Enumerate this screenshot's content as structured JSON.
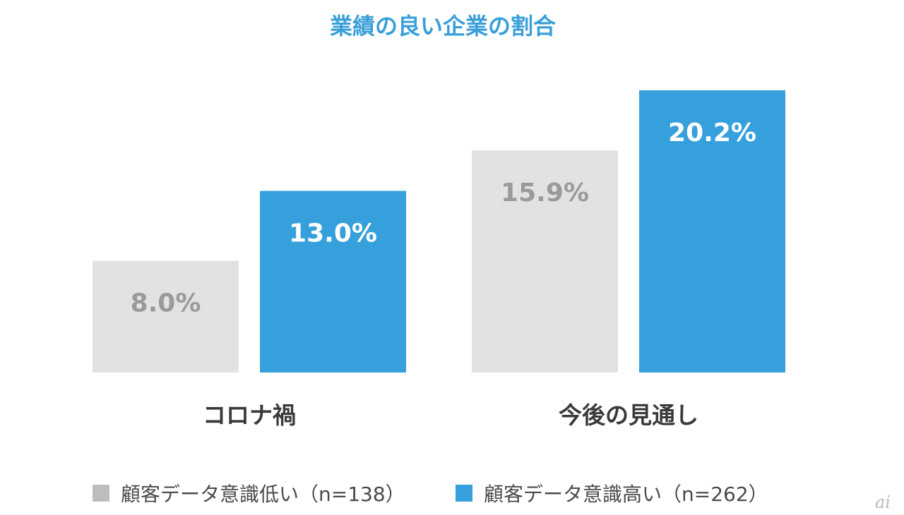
{
  "chart_data": {
    "type": "bar",
    "title": "業績の良い企業の割合",
    "categories": [
      "コロナ禍",
      "今後の見通し"
    ],
    "series": [
      {
        "name": "顧客データ意識低い（n=138）",
        "values": [
          8.0,
          15.9
        ],
        "labels": [
          "8.0%",
          "15.9%"
        ],
        "color": "#e2e2e2",
        "label_color": "#9a9a9a"
      },
      {
        "name": "顧客データ意識高い（n=262）",
        "values": [
          13.0,
          20.2
        ],
        "labels": [
          "13.0%",
          "20.2%"
        ],
        "color": "#35a0db",
        "label_color": "#ffffff"
      }
    ],
    "ylim": [
      0,
      20.2
    ],
    "grid": false,
    "legend": "bottom"
  },
  "watermark": "ai"
}
